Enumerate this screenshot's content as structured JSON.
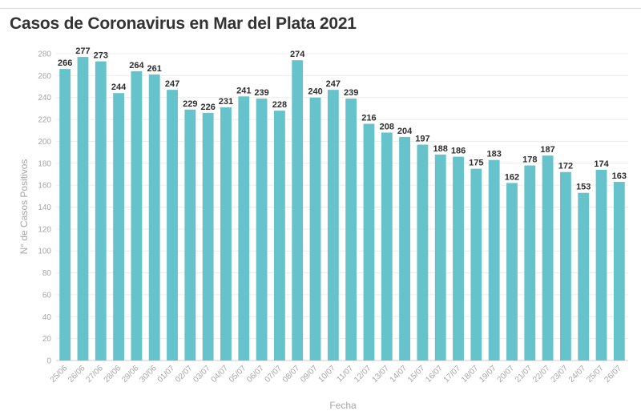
{
  "chart_data": {
    "type": "bar",
    "title": "Casos de Coronavirus en Mar del Plata 2021",
    "xlabel": "Fecha",
    "ylabel": "N° de Casos Positivos",
    "ylim": [
      0,
      280
    ],
    "yticks": [
      0,
      20,
      40,
      60,
      80,
      100,
      120,
      140,
      160,
      180,
      200,
      220,
      240,
      260,
      280
    ],
    "grid": true,
    "color": "#66c2cb",
    "categories": [
      "25/06",
      "26/06",
      "27/06",
      "28/06",
      "29/06",
      "30/06",
      "01/07",
      "02/07",
      "03/07",
      "04/07",
      "05/07",
      "06/07",
      "07/07",
      "08/07",
      "09/07",
      "10/07",
      "11/07",
      "12/07",
      "13/07",
      "14/07",
      "15/07",
      "16/07",
      "17/07",
      "18/07",
      "19/07",
      "20/07",
      "21/07",
      "22/07",
      "23/07",
      "24/07",
      "25/07",
      "26/07"
    ],
    "values": [
      266,
      277,
      273,
      244,
      264,
      261,
      247,
      229,
      226,
      231,
      241,
      239,
      228,
      274,
      240,
      247,
      239,
      216,
      208,
      204,
      197,
      188,
      186,
      175,
      183,
      162,
      178,
      187,
      172,
      153,
      174,
      163
    ]
  }
}
